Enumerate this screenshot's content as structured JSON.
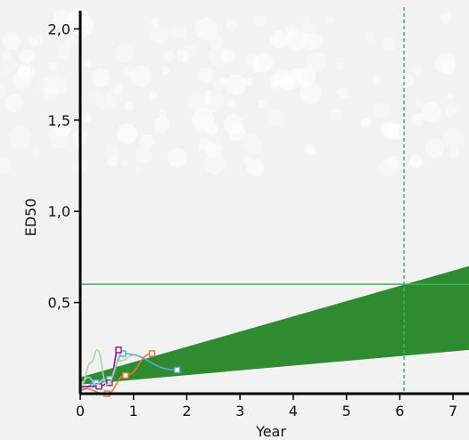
{
  "chart_data": {
    "type": "line",
    "title": "",
    "xlabel": "Year",
    "ylabel": "ED50",
    "xlim": [
      0,
      7.3
    ],
    "ylim": [
      0,
      2.1
    ],
    "x_ticks": [
      {
        "value": 0,
        "label": "0"
      },
      {
        "value": 1,
        "label": "1"
      },
      {
        "value": 2,
        "label": "2"
      },
      {
        "value": 3,
        "label": "3"
      },
      {
        "value": 4,
        "label": "4"
      },
      {
        "value": 5,
        "label": "5"
      },
      {
        "value": 6,
        "label": "6"
      },
      {
        "value": 7,
        "label": "7"
      }
    ],
    "y_ticks": [
      {
        "value": 0.5,
        "label": "0,5"
      },
      {
        "value": 1.0,
        "label": "1,0"
      },
      {
        "value": 1.5,
        "label": "1,5"
      },
      {
        "value": 2.0,
        "label": "2,0"
      }
    ],
    "band": {
      "color": "#2e8b30",
      "x": [
        0,
        7.3
      ],
      "lower": [
        0.05,
        0.24
      ],
      "upper": [
        0.09,
        0.7
      ]
    },
    "reference_lines": {
      "color": "#3cb55a",
      "horizontal_y": 0.6,
      "vertical_x": 6.08
    },
    "series": [
      {
        "color": "#5aa8d8",
        "marker": "square",
        "x": [
          0.02,
          0.3,
          0.55,
          0.8,
          1.82
        ],
        "y": [
          0.02,
          0.06,
          0.08,
          0.22,
          0.13
        ]
      },
      {
        "color": "#8b1a8b",
        "marker": "square",
        "x": [
          0.02,
          0.35,
          0.55,
          0.72
        ],
        "y": [
          0.04,
          0.04,
          0.06,
          0.24
        ]
      },
      {
        "color": "#e07a30",
        "marker": "square",
        "x": [
          0.02,
          0.5,
          0.85,
          1.35
        ],
        "y": [
          0.03,
          0.0,
          0.1,
          0.22
        ]
      },
      {
        "color": "#a8d8a0",
        "marker": "none",
        "x": [
          0.02,
          0.2,
          0.32,
          0.5,
          0.75,
          1.0
        ],
        "y": [
          0.05,
          0.17,
          0.24,
          0.05,
          0.18,
          0.21
        ]
      },
      {
        "color": "#a8c8e8",
        "marker": "none",
        "x": [
          0.02,
          0.15,
          0.3,
          0.45
        ],
        "y": [
          0.06,
          0.09,
          0.05,
          0.08
        ]
      }
    ]
  }
}
